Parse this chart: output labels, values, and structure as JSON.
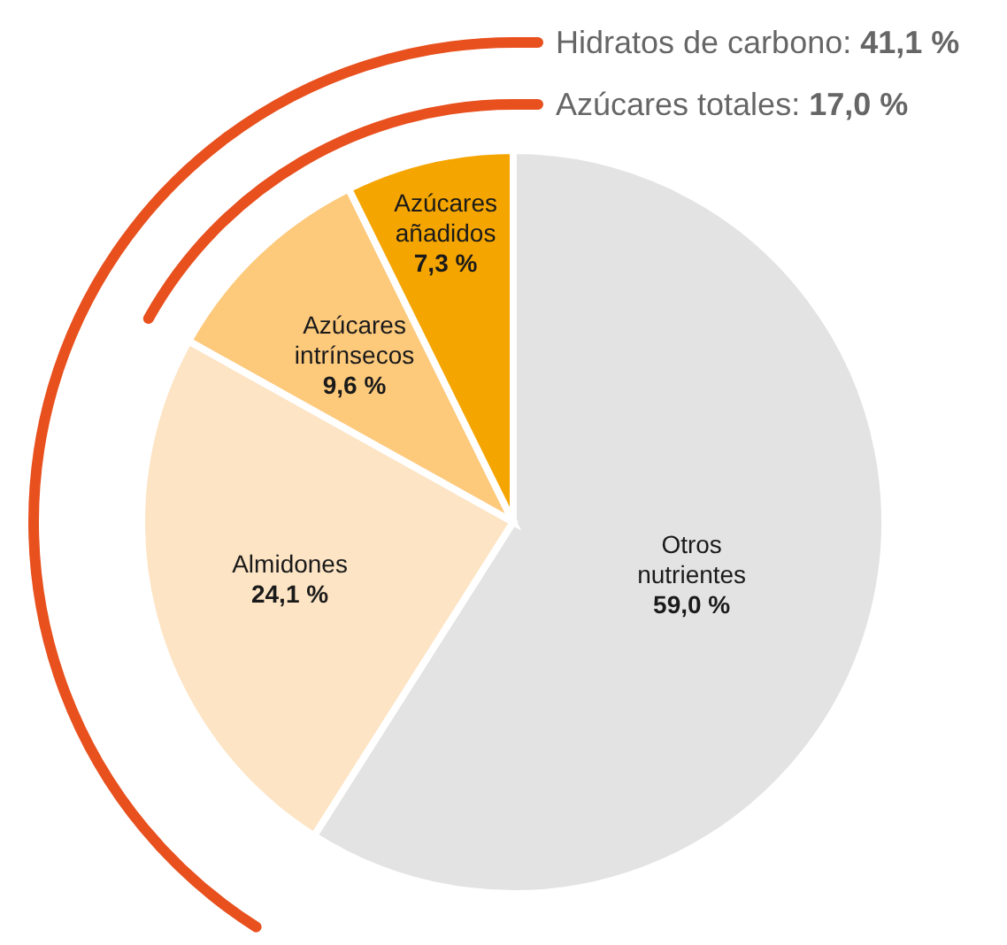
{
  "chart_data": {
    "type": "pie",
    "categories": [
      "Otros nutrientes",
      "Almidones",
      "Azúcares intrínsecos",
      "Azúcares añadidos"
    ],
    "values": [
      59.0,
      24.1,
      9.6,
      7.3
    ],
    "colors": [
      "#e3e3e3",
      "#fde4c4",
      "#fdc97b",
      "#f5a500"
    ],
    "value_labels": [
      "59,0 %",
      "24,1 %",
      "9,6 %",
      "7,3 %"
    ],
    "annotations": [
      "Hidratos de carbono: 41,1 %",
      "Azúcares totales: 17,0 %"
    ]
  }
}
